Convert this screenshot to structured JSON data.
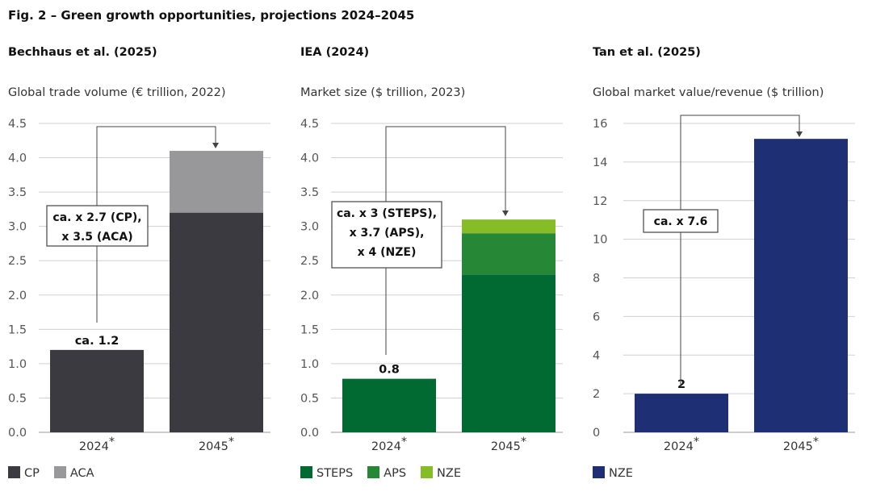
{
  "figure_title": "Fig. 2 – Green growth opportunities, projections 2024–2045",
  "chart_data": [
    {
      "type": "bar",
      "stacked": true,
      "title": "Bechhaus et al. (2025)",
      "ylabel": "Global trade volume (€ trillion, 2022)",
      "categories": [
        "2024*",
        "2045*"
      ],
      "ylim": [
        0,
        4.5
      ],
      "yticks": [
        "0.0",
        "0.5",
        "1.0",
        "1.5",
        "2.0",
        "2.5",
        "3.0",
        "3.5",
        "4.0",
        "4.5"
      ],
      "series": [
        {
          "name": "CP",
          "color": "#3b3a41",
          "values": [
            1.2,
            3.2
          ]
        },
        {
          "name": "ACA",
          "color": "#98989b",
          "values": [
            0,
            0.9
          ]
        }
      ],
      "data_labels": [
        "ca. 1.2",
        ""
      ],
      "annotation": [
        "ca. x 2.7 (CP),",
        "x 3.5 (ACA)"
      ],
      "grid": true,
      "legend": "bottom-left"
    },
    {
      "type": "bar",
      "stacked": true,
      "title": "IEA (2024)",
      "ylabel": "Market size ($ trillion, 2023)",
      "categories": [
        "2024*",
        "2045*"
      ],
      "ylim": [
        0,
        4.5
      ],
      "yticks": [
        "0.0",
        "0.5",
        "1.0",
        "1.5",
        "2.0",
        "2.5",
        "3.0",
        "3.5",
        "4.0",
        "4.5"
      ],
      "series": [
        {
          "name": "STEPS",
          "color": "#006a32",
          "values": [
            0.78,
            2.3
          ]
        },
        {
          "name": "APS",
          "color": "#268837",
          "values": [
            0,
            0.6
          ]
        },
        {
          "name": "NZE",
          "color": "#86bc25",
          "values": [
            0,
            0.2
          ]
        }
      ],
      "data_labels": [
        "0.8",
        ""
      ],
      "annotation": [
        "ca. x 3 (STEPS),",
        "x 3.7 (APS),",
        "x 4 (NZE)"
      ],
      "grid": true,
      "legend": "bottom-left"
    },
    {
      "type": "bar",
      "stacked": false,
      "title": "Tan et al. (2025)",
      "ylabel": "Global market value/revenue ($ trillion)",
      "categories": [
        "2024*",
        "2045*"
      ],
      "ylim": [
        0,
        16
      ],
      "yticks": [
        "0",
        "2",
        "4",
        "6",
        "8",
        "10",
        "12",
        "14",
        "16"
      ],
      "series": [
        {
          "name": "NZE",
          "color": "#1e2f73",
          "values": [
            2,
            15.2
          ]
        }
      ],
      "data_labels": [
        "2",
        ""
      ],
      "annotation": [
        "ca. x 7.6"
      ],
      "grid": true,
      "legend": "bottom-left"
    }
  ]
}
